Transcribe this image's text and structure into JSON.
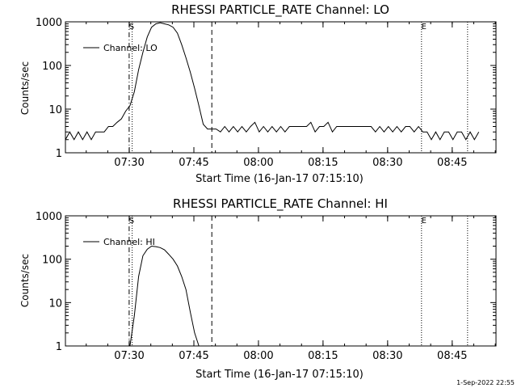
{
  "footer": {
    "timestamp": "1-Sep-2022 22:55"
  },
  "chart_data": [
    {
      "type": "line",
      "title": "RHESSI PARTICLE_RATE Channel: LO",
      "xlabel": "Start Time (16-Jan-17 07:15:10)",
      "ylabel": "Counts/sec",
      "yscale": "log",
      "ylim": [
        1,
        1000
      ],
      "xlim_minutes": [
        0,
        100
      ],
      "x_tick_labels": [
        "07:30",
        "07:45",
        "08:00",
        "08:15",
        "08:30",
        "08:45"
      ],
      "y_tick_labels": [
        "1",
        "10",
        "100",
        "1000"
      ],
      "legend": {
        "label": "Channel: LO",
        "position": "top-left"
      },
      "markers": [
        {
          "label": "S",
          "minute": 14.8,
          "style": "dash-dot"
        },
        {
          "label": "",
          "minute": 15.5,
          "style": "dotted"
        },
        {
          "label": "",
          "minute": 34.0,
          "style": "dashed"
        },
        {
          "label": "E",
          "minute": 82.7,
          "style": "dotted"
        },
        {
          "label": "",
          "minute": 93.4,
          "style": "dotted"
        }
      ],
      "series": [
        {
          "name": "Channel: LO",
          "x": [
            0.0,
            1.0,
            2.0,
            3.0,
            4.0,
            5.0,
            6.0,
            7.0,
            8.0,
            9.0,
            10.0,
            11.0,
            12.0,
            13.0,
            14.0,
            15.0,
            16.0,
            17.0,
            18.0,
            19.0,
            20.0,
            21.0,
            22.0,
            23.0,
            24.0,
            25.0,
            26.0,
            27.0,
            28.0,
            29.0,
            30.0,
            31.0,
            32.0,
            33.0,
            34.0,
            35.0,
            36.0,
            37.0,
            38.0,
            39.0,
            40.0,
            41.0,
            42.0,
            43.0,
            44.0,
            45.0,
            46.0,
            47.0,
            48.0,
            49.0,
            50.0,
            51.0,
            52.0,
            53.0,
            54.0,
            55.0,
            56.0,
            57.0,
            58.0,
            59.0,
            60.0,
            61.0,
            62.0,
            63.0,
            64.0,
            65.0,
            66.0,
            67.0,
            68.0,
            69.0,
            70.0,
            71.0,
            72.0,
            73.0,
            74.0,
            75.0,
            76.0,
            77.0,
            78.0,
            79.0,
            80.0,
            81.0,
            82.0,
            83.0,
            84.0,
            85.0,
            86.0,
            87.0,
            88.0,
            89.0,
            90.0,
            91.0,
            92.0,
            93.0,
            94.0,
            95.0,
            96.0
          ],
          "y": [
            2,
            3,
            2,
            3,
            2,
            3,
            2,
            3,
            3,
            3,
            4,
            4,
            5,
            6,
            9,
            12,
            25,
            80,
            200,
            450,
            750,
            900,
            950,
            900,
            850,
            750,
            550,
            300,
            150,
            70,
            30,
            12,
            4.5,
            3.5,
            3.5,
            3.5,
            3,
            4,
            3,
            4,
            3,
            4,
            3,
            4,
            5,
            3,
            4,
            3,
            4,
            3,
            4,
            3,
            4,
            4,
            4,
            4,
            4,
            5,
            3,
            4,
            4,
            5,
            3,
            4,
            4,
            4,
            4,
            4,
            4,
            4,
            4,
            4,
            3,
            4,
            3,
            4,
            3,
            4,
            3,
            4,
            4,
            3,
            4,
            3,
            3,
            2,
            3,
            2,
            3,
            3,
            2,
            3,
            3,
            2,
            3,
            2,
            3
          ]
        }
      ]
    },
    {
      "type": "line",
      "title": "RHESSI PARTICLE_RATE Channel: HI",
      "xlabel": "Start Time (16-Jan-17 07:15:10)",
      "ylabel": "Counts/sec",
      "yscale": "log",
      "ylim": [
        1,
        1000
      ],
      "xlim_minutes": [
        0,
        100
      ],
      "x_tick_labels": [
        "07:30",
        "07:45",
        "08:00",
        "08:15",
        "08:30",
        "08:45"
      ],
      "y_tick_labels": [
        "1",
        "10",
        "100",
        "1000"
      ],
      "legend": {
        "label": "Channel: HI",
        "position": "top-left"
      },
      "markers": [
        {
          "label": "S",
          "minute": 14.8,
          "style": "dash-dot"
        },
        {
          "label": "",
          "minute": 15.5,
          "style": "dotted"
        },
        {
          "label": "",
          "minute": 34.0,
          "style": "dashed"
        },
        {
          "label": "E",
          "minute": 82.7,
          "style": "dotted"
        },
        {
          "label": "",
          "minute": 93.4,
          "style": "dotted"
        }
      ],
      "series": [
        {
          "name": "Channel: HI",
          "x": [
            15.0,
            16.0,
            17.0,
            18.0,
            19.0,
            20.0,
            21.0,
            22.0,
            23.0,
            24.0,
            25.0,
            26.0,
            27.0,
            28.0,
            29.0,
            30.0,
            31.0
          ],
          "y": [
            1,
            5,
            40,
            120,
            170,
            200,
            195,
            185,
            165,
            130,
            100,
            70,
            40,
            20,
            6,
            2,
            1
          ]
        }
      ]
    }
  ]
}
